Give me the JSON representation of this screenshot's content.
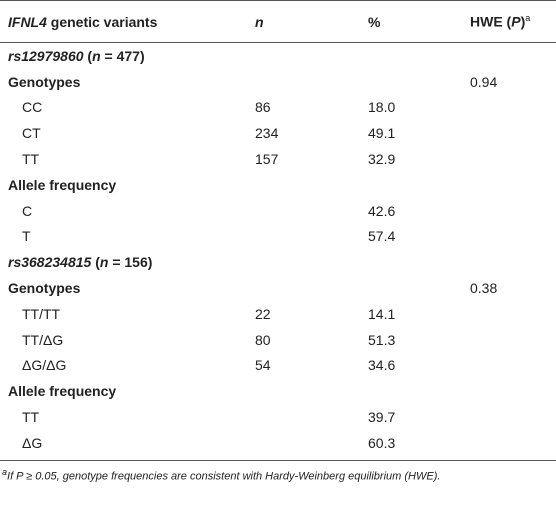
{
  "table": {
    "header": [
      [
        "IFNL4",
        " genetic variants"
      ],
      [
        "n"
      ],
      [
        "%"
      ],
      [
        "HWE (",
        "P",
        ")",
        "a"
      ]
    ],
    "rows": [
      {
        "label": [
          "rs12979860",
          " (",
          "n",
          " = 477)"
        ]
      },
      {
        "label": "Genotypes",
        "hwe": "0.94"
      },
      {
        "label": "CC",
        "n": "86",
        "pct": "18.0"
      },
      {
        "label": "CT",
        "n": "234",
        "pct": "49.1"
      },
      {
        "label": "TT",
        "n": "157",
        "pct": "32.9"
      },
      {
        "label": "Allele frequency"
      },
      {
        "label": "C",
        "pct": "42.6"
      },
      {
        "label": "T",
        "pct": "57.4"
      },
      {
        "label": [
          "rs368234815",
          " (",
          "n",
          " = 156)"
        ]
      },
      {
        "label": "Genotypes",
        "hwe": "0.38"
      },
      {
        "label": "TT/TT",
        "n": "22",
        "pct": "14.1"
      },
      {
        "label": "TT/ΔG",
        "n": "80",
        "pct": "51.3"
      },
      {
        "label": "ΔG/ΔG",
        "n": "54",
        "pct": "34.6"
      },
      {
        "label": "Allele frequency"
      },
      {
        "label": "TT",
        "pct": "39.7"
      },
      {
        "label": "ΔG",
        "pct": "60.3"
      }
    ],
    "footnote": [
      "a",
      "If P ≥ 0.05, genotype frequencies are consistent with Hardy-Weinberg equilibrium (HWE)."
    ]
  }
}
